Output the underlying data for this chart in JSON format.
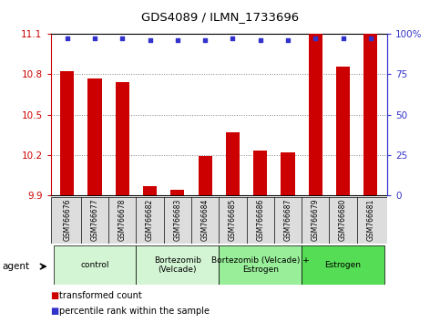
{
  "title": "GDS4089 / ILMN_1733696",
  "samples": [
    "GSM766676",
    "GSM766677",
    "GSM766678",
    "GSM766682",
    "GSM766683",
    "GSM766684",
    "GSM766685",
    "GSM766686",
    "GSM766687",
    "GSM766679",
    "GSM766680",
    "GSM766681"
  ],
  "bar_values": [
    10.82,
    10.77,
    10.74,
    9.97,
    9.94,
    10.19,
    10.37,
    10.23,
    10.22,
    11.1,
    10.86,
    11.1
  ],
  "percentile_values": [
    97,
    97,
    97,
    96,
    96,
    96,
    97,
    96,
    96,
    97,
    97,
    97
  ],
  "ylim": [
    9.9,
    11.1
  ],
  "yticks": [
    9.9,
    10.2,
    10.5,
    10.8,
    11.1
  ],
  "right_yticks": [
    0,
    25,
    50,
    75,
    100
  ],
  "bar_color": "#cc0000",
  "dot_color": "#3333cc",
  "groups": [
    {
      "label": "control",
      "start": 0,
      "end": 3,
      "color": "#d4f5d4"
    },
    {
      "label": "Bortezomib\n(Velcade)",
      "start": 3,
      "end": 6,
      "color": "#d4f5d4"
    },
    {
      "label": "Bortezomib (Velcade) +\nEstrogen",
      "start": 6,
      "end": 9,
      "color": "#99ee99"
    },
    {
      "label": "Estrogen",
      "start": 9,
      "end": 12,
      "color": "#55dd55"
    }
  ],
  "xlabel_agent": "agent",
  "legend_bar": "transformed count",
  "legend_dot": "percentile rank within the sample",
  "tick_label_color": "#cc0000",
  "right_tick_color": "#3333cc",
  "bar_width": 0.5
}
